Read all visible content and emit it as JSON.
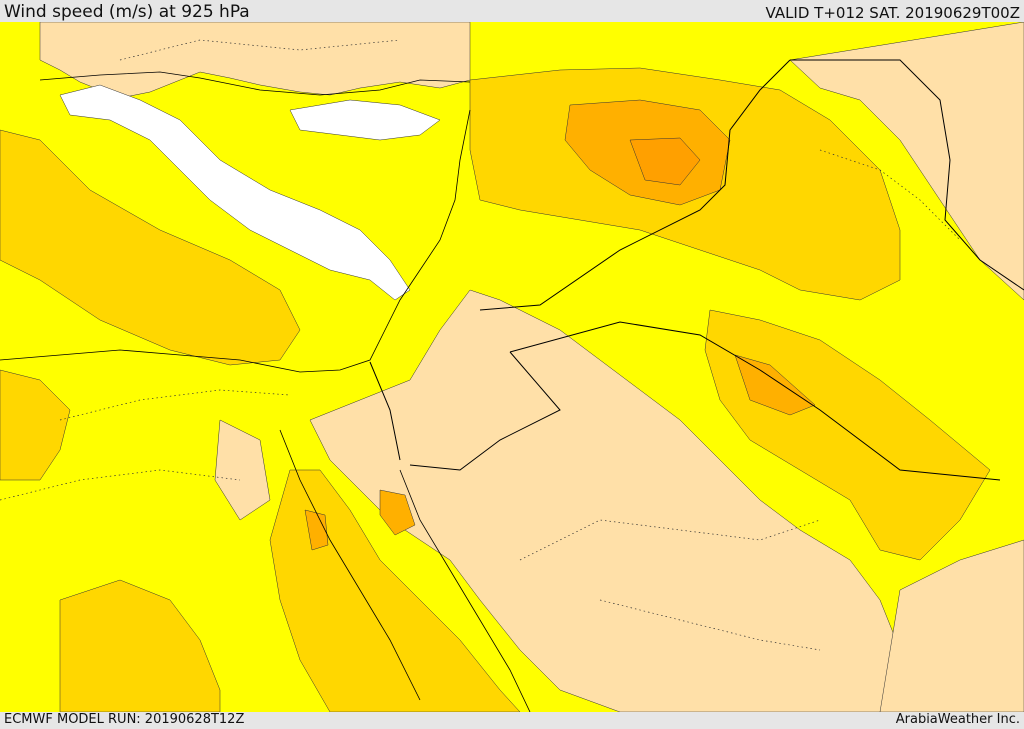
{
  "header": {
    "title": "Wind speed (m/s) at 925 hPa",
    "valid": "VALID T+012 SAT. 20190629T00Z"
  },
  "footer": {
    "run": "ECMWF MODEL RUN: 20190628T12Z",
    "credit": "ArabiaWeather Inc."
  },
  "colors": {
    "sea_calm": "#ffffff",
    "band_light": "#ffe0a8",
    "band_yellow": "#ffff00",
    "band_gold": "#ffd700",
    "band_amber": "#ffb000",
    "band_orange": "#ffa000",
    "border": "#000000"
  }
}
